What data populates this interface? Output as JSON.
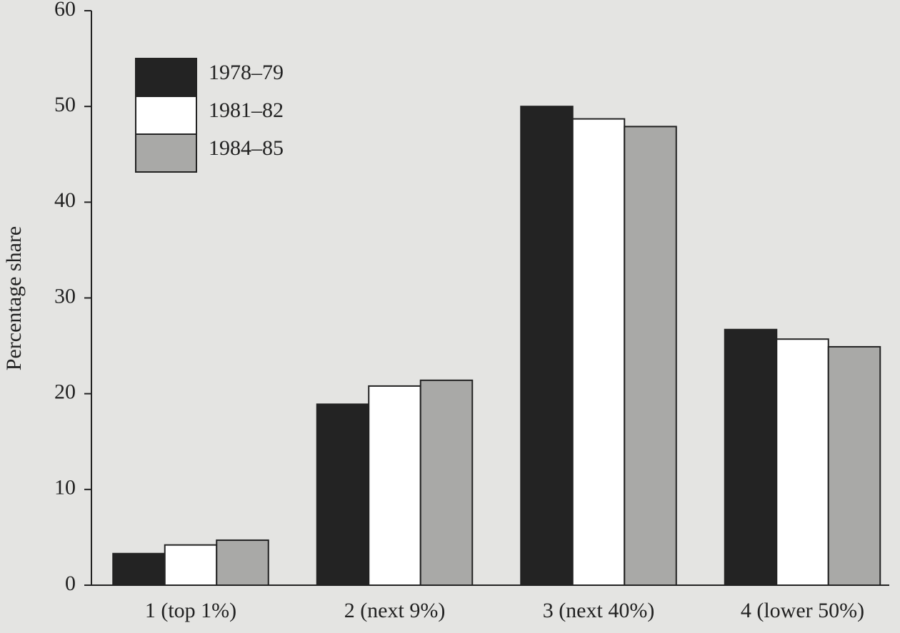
{
  "chart_data": {
    "type": "bar",
    "y_label": "Percentage share",
    "categories": [
      "1 (top 1%)",
      "2 (next 9%)",
      "3 (next 40%)",
      "4 (lower 50%)"
    ],
    "series": [
      {
        "name": "1978–79",
        "color": "#232323",
        "values": [
          3.3,
          18.9,
          50.0,
          26.7
        ]
      },
      {
        "name": "1981–82",
        "color": "#ffffff",
        "values": [
          4.2,
          20.8,
          48.7,
          25.7
        ]
      },
      {
        "name": "1984–85",
        "color": "#a9a9a7",
        "values": [
          4.7,
          21.4,
          47.9,
          24.9
        ]
      }
    ],
    "ylim": [
      0,
      60
    ],
    "yticks": [
      0,
      10,
      20,
      30,
      40,
      50,
      60
    ],
    "legend": "upper left"
  }
}
